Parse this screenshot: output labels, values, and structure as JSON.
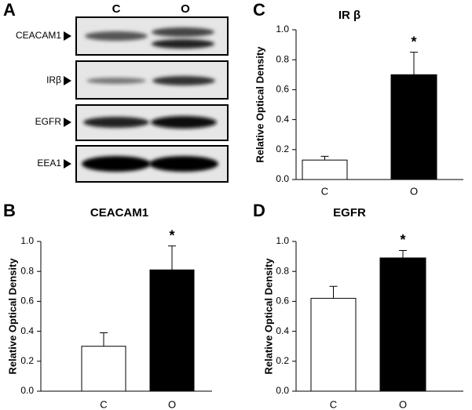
{
  "blot": {
    "panel_label": "A",
    "lanes": [
      "C",
      "O"
    ],
    "rows": [
      "CEACAM1",
      "IRβ",
      "EGFR",
      "EEA1"
    ]
  },
  "chart_data": [
    {
      "type": "bar",
      "panel_label": "B",
      "title": "CEACAM1",
      "y_label": "Relative Optical Density",
      "categories": [
        "C",
        "O"
      ],
      "values": [
        0.3,
        0.81
      ],
      "errors": [
        0.09,
        0.16
      ],
      "colors": [
        "#ffffff",
        "#000000"
      ],
      "significance": [
        null,
        "*"
      ],
      "ylim": [
        0,
        1
      ],
      "yticks": [
        {
          "value": 0,
          "label": "0.0"
        },
        {
          "value": 0.2,
          "label": "0.2"
        },
        {
          "value": 0.4,
          "label": "0.4"
        },
        {
          "value": 0.6,
          "label": "0.6"
        },
        {
          "value": 0.8,
          "label": "0.8"
        },
        {
          "value": 1,
          "label": "1.0"
        }
      ]
    },
    {
      "type": "bar",
      "panel_label": "C",
      "title": "IR β",
      "y_label": "Relative Optical Density",
      "categories": [
        "C",
        "O"
      ],
      "values": [
        0.13,
        0.7
      ],
      "errors": [
        0.025,
        0.15
      ],
      "colors": [
        "#ffffff",
        "#000000"
      ],
      "significance": [
        null,
        "*"
      ],
      "ylim": [
        0,
        1
      ],
      "yticks": [
        {
          "value": 0,
          "label": "0.0"
        },
        {
          "value": 0.2,
          "label": "0.2"
        },
        {
          "value": 0.4,
          "label": "0.4"
        },
        {
          "value": 0.6,
          "label": "0.6"
        },
        {
          "value": 0.8,
          "label": "0.8"
        },
        {
          "value": 1,
          "label": "1.0"
        }
      ]
    },
    {
      "type": "bar",
      "panel_label": "D",
      "title": "EGFR",
      "y_label": "Relative Optical Density",
      "categories": [
        "C",
        "O"
      ],
      "values": [
        0.62,
        0.89
      ],
      "errors": [
        0.08,
        0.05
      ],
      "colors": [
        "#ffffff",
        "#000000"
      ],
      "significance": [
        null,
        "*"
      ],
      "ylim": [
        0,
        1
      ],
      "yticks": [
        {
          "value": 0,
          "label": "0.0"
        },
        {
          "value": 0.2,
          "label": "0.2"
        },
        {
          "value": 0.4,
          "label": "0.4"
        },
        {
          "value": 0.6,
          "label": "0.6"
        },
        {
          "value": 0.8,
          "label": "0.8"
        },
        {
          "value": 1,
          "label": "1.0"
        }
      ]
    }
  ]
}
